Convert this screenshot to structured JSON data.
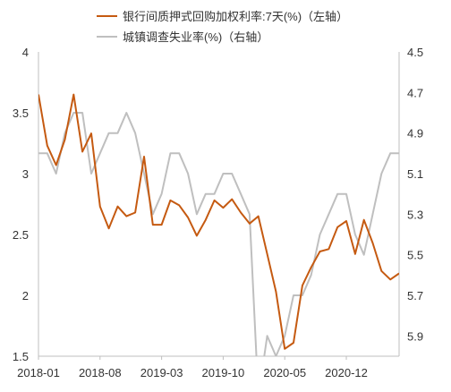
{
  "chart_data": {
    "type": "line",
    "title": "",
    "legend": [
      {
        "name": "银行间质押式回购加权利率:7天(%)（左轴）",
        "color": "#c55a11",
        "axis": "left"
      },
      {
        "name": "城镇调查失业率(%)（右轴）",
        "color": "#bfbfbf",
        "axis": "right"
      }
    ],
    "legend_placement": "top-center",
    "grid": false,
    "x_ticks": [
      "2018-01",
      "2018-08",
      "2019-03",
      "2019-10",
      "2020-05",
      "2020-12"
    ],
    "y_left": {
      "range": [
        1.5,
        4
      ],
      "ticks": [
        "4",
        "3.5",
        "3",
        "2.5",
        "2",
        "1.5"
      ]
    },
    "y_right": {
      "range": [
        4.5,
        6.0
      ],
      "inverted": true,
      "ticks": [
        "4.5",
        "4.7",
        "4.9",
        "5.1",
        "5.3",
        "5.5",
        "5.7",
        "5.9"
      ]
    },
    "x": [
      "2018-01",
      "2018-02",
      "2018-03",
      "2018-04",
      "2018-05",
      "2018-06",
      "2018-07",
      "2018-08",
      "2018-09",
      "2018-10",
      "2018-11",
      "2018-12",
      "2019-01",
      "2019-02",
      "2019-03",
      "2019-04",
      "2019-05",
      "2019-06",
      "2019-07",
      "2019-08",
      "2019-09",
      "2019-10",
      "2019-11",
      "2019-12",
      "2020-01",
      "2020-02",
      "2020-03",
      "2020-04",
      "2020-05",
      "2020-06",
      "2020-07",
      "2020-08",
      "2020-09",
      "2020-10",
      "2020-11",
      "2020-12",
      "2021-01",
      "2021-02",
      "2021-03",
      "2021-04",
      "2021-05",
      "2021-06"
    ],
    "series": [
      {
        "name": "银行间质押式回购加权利率:7天(%)（左轴）",
        "axis": "left",
        "color": "#c55a11",
        "values": [
          3.65,
          3.23,
          3.07,
          3.28,
          3.65,
          3.18,
          3.33,
          2.73,
          2.55,
          2.73,
          2.65,
          2.68,
          3.14,
          2.58,
          2.58,
          2.78,
          2.74,
          2.64,
          2.49,
          2.62,
          2.78,
          2.72,
          2.79,
          2.68,
          2.59,
          2.65,
          2.34,
          2.03,
          1.56,
          1.61,
          2.08,
          2.23,
          2.36,
          2.38,
          2.56,
          2.61,
          2.34,
          2.62,
          2.43,
          2.2,
          2.13,
          2.18
        ]
      },
      {
        "name": "城镇调查失业率(%)（右轴）",
        "axis": "right",
        "color": "#bfbfbf",
        "values": [
          5.0,
          5.0,
          5.1,
          4.9,
          4.8,
          4.8,
          5.1,
          5.0,
          4.9,
          4.9,
          4.8,
          4.9,
          5.1,
          5.3,
          5.2,
          5.0,
          5.0,
          5.1,
          5.3,
          5.2,
          5.2,
          5.1,
          5.1,
          5.2,
          5.3,
          6.2,
          5.9,
          6.0,
          5.9,
          5.7,
          5.7,
          5.6,
          5.4,
          5.3,
          5.2,
          5.2,
          5.4,
          5.5,
          5.3,
          5.1,
          5.0,
          5.0
        ]
      }
    ]
  }
}
